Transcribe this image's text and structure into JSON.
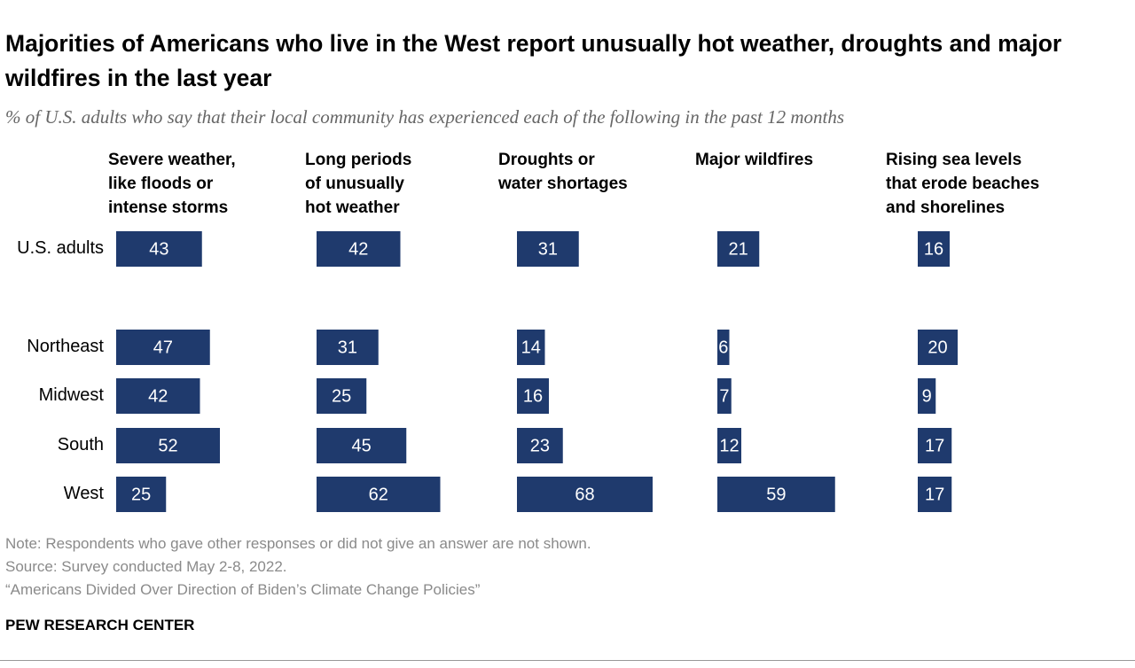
{
  "chart_data": {
    "type": "bar",
    "title": "Majorities of Americans who live in the West report unusually hot weather, droughts and major wildfires in the last year",
    "subtitle": "% of U.S. adults who say that their local community has experienced each of the following in the past 12 months",
    "categories": [
      "U.S. adults",
      "Northeast",
      "Midwest",
      "South",
      "West"
    ],
    "color": "#1f3a6d",
    "series": [
      {
        "name": "Severe weather,\nlike floods or\nintense storms",
        "values": [
          43,
          47,
          42,
          52,
          25
        ]
      },
      {
        "name": "Long periods\nof unusually\nhot weather",
        "values": [
          42,
          31,
          25,
          45,
          62
        ]
      },
      {
        "name": "Droughts or\nwater shortages",
        "values": [
          31,
          14,
          16,
          23,
          68
        ]
      },
      {
        "name": "Major wildfires",
        "values": [
          21,
          6,
          7,
          12,
          59
        ]
      },
      {
        "name": "Rising sea levels\nthat erode beaches\nand shorelines",
        "values": [
          16,
          20,
          9,
          17,
          17
        ]
      }
    ],
    "note": "Note: Respondents who gave other responses or did not give an answer are not shown.",
    "source": "Source: Survey conducted May 2-8, 2022.",
    "report": "“Americans Divided Over Direction of Biden’s Climate Change Policies”",
    "branding": "PEW RESEARCH CENTER"
  }
}
